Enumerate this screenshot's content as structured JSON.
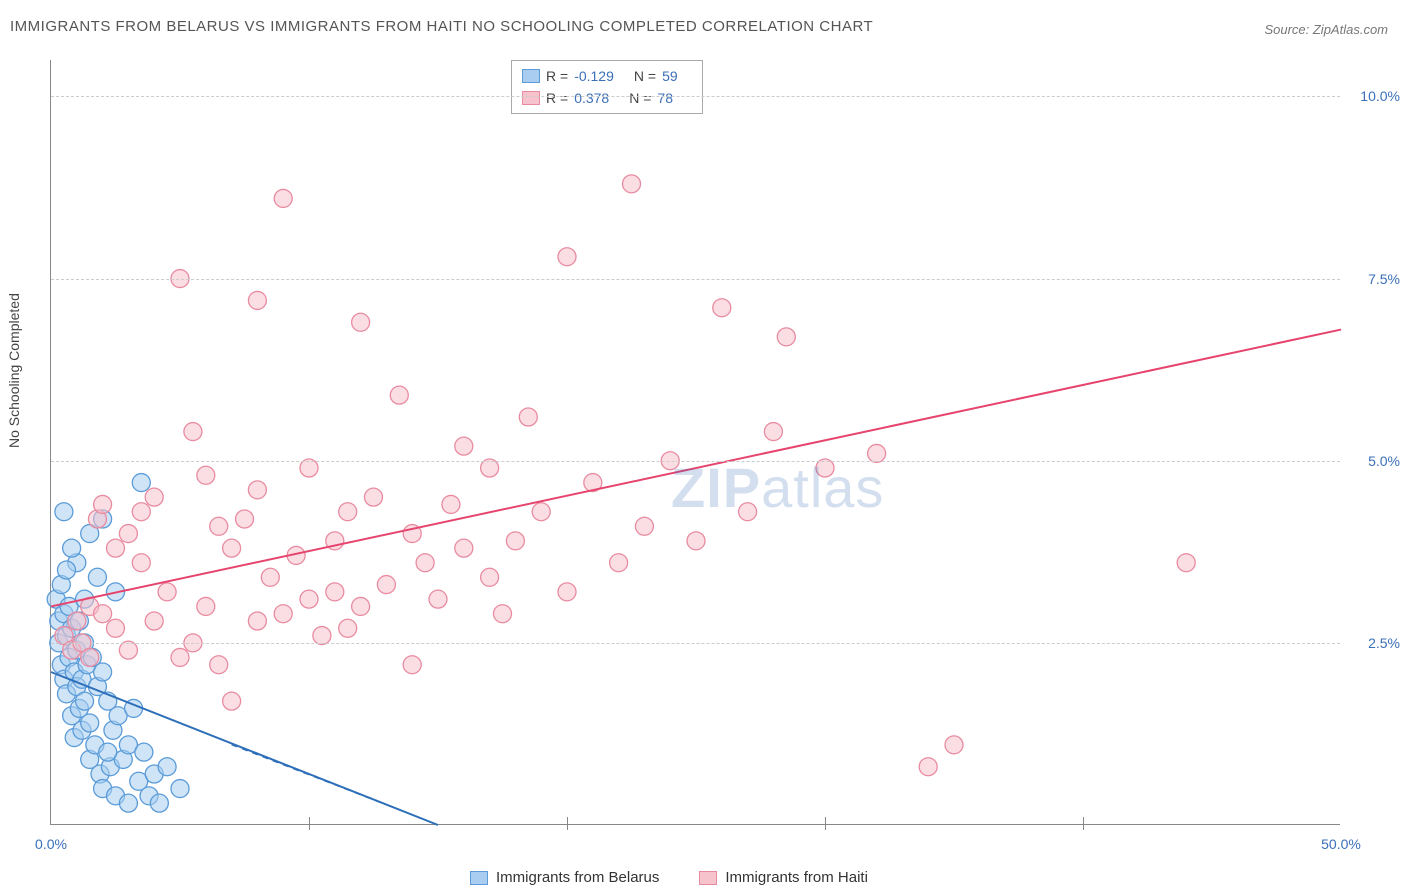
{
  "title": "IMMIGRANTS FROM BELARUS VS IMMIGRANTS FROM HAITI NO SCHOOLING COMPLETED CORRELATION CHART",
  "source": "Source: ZipAtlas.com",
  "y_axis_label": "No Schooling Completed",
  "watermark": "ZIPatlas",
  "chart": {
    "type": "scatter-with-regression",
    "background_color": "#ffffff",
    "grid_color": "#cccccc",
    "axis_color": "#888888",
    "tick_color": "#3b6fb8",
    "xlim": [
      0,
      50
    ],
    "ylim": [
      0,
      10.5
    ],
    "x_ticks": [
      0,
      10,
      20,
      30,
      40,
      50
    ],
    "x_tick_labels": [
      "0.0%",
      "",
      "",
      "",
      "",
      "50.0%"
    ],
    "y_ticks": [
      2.5,
      5.0,
      7.5,
      10.0
    ],
    "y_tick_labels": [
      "2.5%",
      "5.0%",
      "7.5%",
      "10.0%"
    ],
    "marker_radius": 9,
    "marker_stroke_width": 1.3,
    "line_width": 2,
    "series": [
      {
        "name": "Immigrants from Belarus",
        "fill_color": "#a8cdf0",
        "stroke_color": "#5a9bd8",
        "line_color": "#2d6fb8",
        "r_value": "-0.129",
        "n_value": "59",
        "regression": {
          "x1": 0,
          "y1": 2.1,
          "x2": 15,
          "y2": 0
        },
        "regression_dash": {
          "x1": 7,
          "y1": 1.1,
          "x2": 15,
          "y2": 0
        },
        "points": [
          [
            0.2,
            3.1
          ],
          [
            0.3,
            2.8
          ],
          [
            0.3,
            2.5
          ],
          [
            0.4,
            3.3
          ],
          [
            0.4,
            2.2
          ],
          [
            0.5,
            2.9
          ],
          [
            0.5,
            2.0
          ],
          [
            0.6,
            2.6
          ],
          [
            0.6,
            1.8
          ],
          [
            0.7,
            3.0
          ],
          [
            0.7,
            2.3
          ],
          [
            0.8,
            2.7
          ],
          [
            0.8,
            1.5
          ],
          [
            0.9,
            2.1
          ],
          [
            0.9,
            1.2
          ],
          [
            1.0,
            2.4
          ],
          [
            1.0,
            1.9
          ],
          [
            1.1,
            2.8
          ],
          [
            1.1,
            1.6
          ],
          [
            1.2,
            2.0
          ],
          [
            1.2,
            1.3
          ],
          [
            1.3,
            2.5
          ],
          [
            1.3,
            1.7
          ],
          [
            1.4,
            2.2
          ],
          [
            1.5,
            1.4
          ],
          [
            1.5,
            0.9
          ],
          [
            1.6,
            2.3
          ],
          [
            1.7,
            1.1
          ],
          [
            1.8,
            1.9
          ],
          [
            1.9,
            0.7
          ],
          [
            2.0,
            2.1
          ],
          [
            2.0,
            0.5
          ],
          [
            2.2,
            1.7
          ],
          [
            2.3,
            0.8
          ],
          [
            2.4,
            1.3
          ],
          [
            2.5,
            0.4
          ],
          [
            2.6,
            1.5
          ],
          [
            2.8,
            0.9
          ],
          [
            3.0,
            1.1
          ],
          [
            3.0,
            0.3
          ],
          [
            3.2,
            1.6
          ],
          [
            3.4,
            0.6
          ],
          [
            3.6,
            1.0
          ],
          [
            3.8,
            0.4
          ],
          [
            4.0,
            0.7
          ],
          [
            4.2,
            0.3
          ],
          [
            4.5,
            0.8
          ],
          [
            5.0,
            0.5
          ],
          [
            3.5,
            4.7
          ],
          [
            2.0,
            4.2
          ],
          [
            1.5,
            4.0
          ],
          [
            0.5,
            4.3
          ],
          [
            1.0,
            3.6
          ],
          [
            0.8,
            3.8
          ],
          [
            1.8,
            3.4
          ],
          [
            2.5,
            3.2
          ],
          [
            0.6,
            3.5
          ],
          [
            1.3,
            3.1
          ],
          [
            2.2,
            1.0
          ]
        ]
      },
      {
        "name": "Immigrants from Haiti",
        "fill_color": "#f6c3cd",
        "stroke_color": "#e98ba0",
        "line_color": "#e6436d",
        "r_value": "0.378",
        "n_value": "78",
        "regression": {
          "x1": 0,
          "y1": 3.0,
          "x2": 50,
          "y2": 6.8
        },
        "points": [
          [
            0.5,
            2.6
          ],
          [
            0.8,
            2.4
          ],
          [
            1.0,
            2.8
          ],
          [
            1.2,
            2.5
          ],
          [
            1.5,
            3.0
          ],
          [
            1.5,
            2.3
          ],
          [
            1.8,
            4.2
          ],
          [
            2.0,
            2.9
          ],
          [
            2.0,
            4.4
          ],
          [
            2.5,
            3.8
          ],
          [
            2.5,
            2.7
          ],
          [
            3.0,
            4.0
          ],
          [
            3.0,
            2.4
          ],
          [
            3.5,
            3.6
          ],
          [
            3.5,
            4.3
          ],
          [
            4.0,
            2.8
          ],
          [
            4.0,
            4.5
          ],
          [
            4.5,
            3.2
          ],
          [
            5.0,
            2.3
          ],
          [
            5.0,
            7.5
          ],
          [
            5.5,
            5.4
          ],
          [
            5.5,
            2.5
          ],
          [
            6.0,
            3.0
          ],
          [
            6.0,
            4.8
          ],
          [
            6.5,
            2.2
          ],
          [
            7.0,
            3.8
          ],
          [
            7.0,
            1.7
          ],
          [
            7.5,
            4.2
          ],
          [
            8.0,
            2.8
          ],
          [
            8.0,
            4.6
          ],
          [
            8.5,
            3.4
          ],
          [
            9.0,
            8.6
          ],
          [
            9.0,
            2.9
          ],
          [
            9.5,
            3.7
          ],
          [
            10.0,
            3.1
          ],
          [
            10.0,
            4.9
          ],
          [
            10.5,
            2.6
          ],
          [
            11.0,
            3.9
          ],
          [
            11.0,
            3.2
          ],
          [
            11.5,
            4.3
          ],
          [
            12.0,
            6.9
          ],
          [
            12.0,
            3.0
          ],
          [
            12.5,
            4.5
          ],
          [
            13.0,
            3.3
          ],
          [
            13.5,
            5.9
          ],
          [
            14.0,
            2.2
          ],
          [
            14.0,
            4.0
          ],
          [
            14.5,
            3.6
          ],
          [
            15.0,
            3.1
          ],
          [
            15.5,
            4.4
          ],
          [
            16.0,
            3.8
          ],
          [
            16.0,
            5.2
          ],
          [
            17.0,
            3.4
          ],
          [
            17.0,
            4.9
          ],
          [
            17.5,
            2.9
          ],
          [
            18.0,
            3.9
          ],
          [
            18.5,
            5.6
          ],
          [
            19.0,
            4.3
          ],
          [
            20.0,
            7.8
          ],
          [
            20.0,
            3.2
          ],
          [
            21.0,
            4.7
          ],
          [
            22.0,
            3.6
          ],
          [
            22.5,
            8.8
          ],
          [
            23.0,
            4.1
          ],
          [
            24.0,
            5.0
          ],
          [
            25.0,
            3.9
          ],
          [
            26.0,
            7.1
          ],
          [
            27.0,
            4.3
          ],
          [
            28.0,
            5.4
          ],
          [
            28.5,
            6.7
          ],
          [
            30.0,
            4.9
          ],
          [
            32.0,
            5.1
          ],
          [
            34.0,
            0.8
          ],
          [
            35.0,
            1.1
          ],
          [
            44.0,
            3.6
          ],
          [
            8.0,
            7.2
          ],
          [
            6.5,
            4.1
          ],
          [
            11.5,
            2.7
          ]
        ]
      }
    ]
  },
  "legend_bottom": [
    {
      "label": "Immigrants from Belarus",
      "fill": "#a8cdf0",
      "stroke": "#5a9bd8"
    },
    {
      "label": "Immigrants from Haiti",
      "fill": "#f6c3cd",
      "stroke": "#e98ba0"
    }
  ]
}
